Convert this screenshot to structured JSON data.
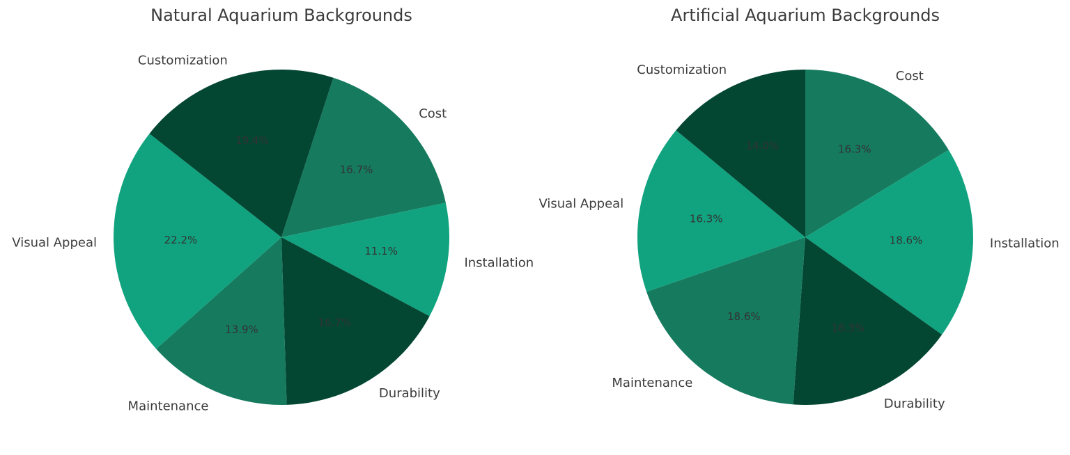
{
  "chart_data": [
    {
      "type": "pie",
      "title": "Natural Aquarium Backgrounds",
      "categories": [
        "Cost",
        "Installation",
        "Durability",
        "Maintenance",
        "Visual Appeal",
        "Customization"
      ],
      "values": [
        16.7,
        11.1,
        16.7,
        13.9,
        22.2,
        19.4
      ],
      "value_labels": [
        "16.7%",
        "11.1%",
        "16.7%",
        "13.9%",
        "22.2%",
        "19.4%"
      ],
      "colors": [
        "#157A5E",
        "#11A37F",
        "#034733",
        "#157A5E",
        "#11A37F",
        "#034733"
      ],
      "start_angle_deg": 72,
      "direction": "clockwise",
      "legend": "none"
    },
    {
      "type": "pie",
      "title": "Artificial Aquarium Backgrounds",
      "categories": [
        "Cost",
        "Installation",
        "Durability",
        "Maintenance",
        "Visual Appeal",
        "Customization"
      ],
      "values": [
        16.3,
        18.6,
        16.3,
        18.6,
        16.3,
        14.0
      ],
      "value_labels": [
        "16.3%",
        "18.6%",
        "16.3%",
        "18.6%",
        "16.3%",
        "14.0%"
      ],
      "colors": [
        "#157A5E",
        "#11A37F",
        "#034733",
        "#157A5E",
        "#11A37F",
        "#034733"
      ],
      "start_angle_deg": 90,
      "direction": "clockwise",
      "legend": "none"
    }
  ]
}
